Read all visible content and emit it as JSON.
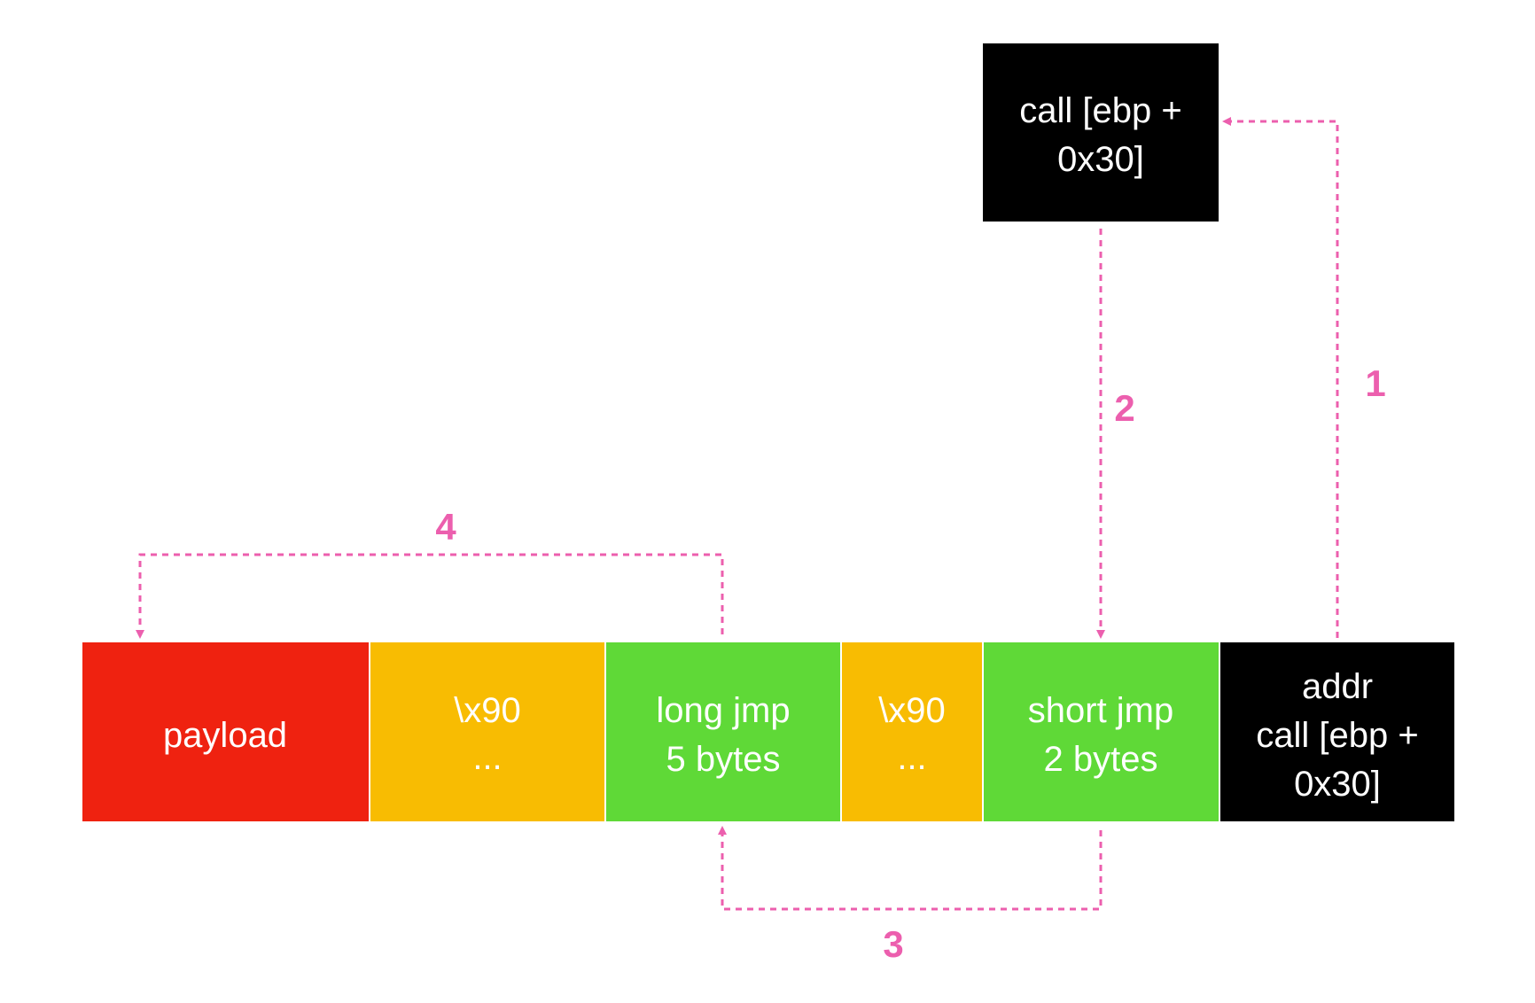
{
  "colors": {
    "payload": "#ef2210",
    "nop": "#f8bc02",
    "jmp": "#5fd937",
    "black": "#000000",
    "arrow": "#ec5fae",
    "text": "#ffffff"
  },
  "top_box": {
    "lines": [
      "call [ebp +",
      "0x30]"
    ]
  },
  "buffer": [
    {
      "id": "payload",
      "lines": [
        "payload"
      ]
    },
    {
      "id": "nop-1",
      "lines": [
        "\\x90",
        "..."
      ]
    },
    {
      "id": "long-jmp",
      "lines": [
        "long jmp",
        "5 bytes"
      ]
    },
    {
      "id": "nop-2",
      "lines": [
        "\\x90",
        "..."
      ]
    },
    {
      "id": "short-jmp",
      "lines": [
        "short jmp",
        "2 bytes"
      ]
    },
    {
      "id": "ret-addr",
      "lines": [
        "addr",
        "call [ebp +",
        "0x30]"
      ]
    }
  ],
  "steps": [
    {
      "id": "step-1",
      "label": "1"
    },
    {
      "id": "step-2",
      "label": "2"
    },
    {
      "id": "step-3",
      "label": "3"
    },
    {
      "id": "step-4",
      "label": "4"
    }
  ]
}
